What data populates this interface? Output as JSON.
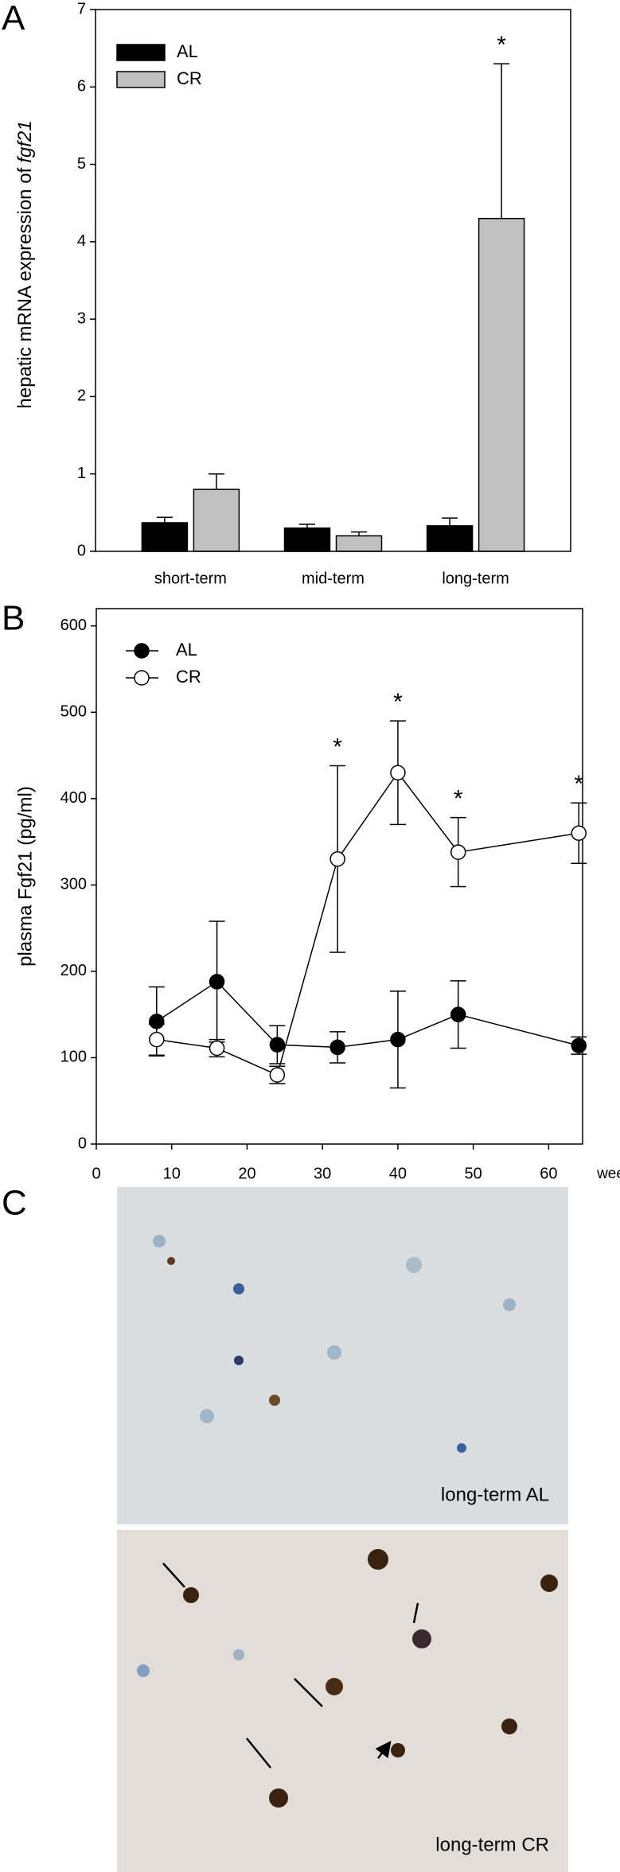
{
  "chart_data": [
    {
      "type": "bar",
      "panel": "A",
      "ylabel_parts": [
        "hepatic mRNA expression of",
        "fgf21"
      ],
      "categories": [
        "short-term",
        "mid-term",
        "long-term"
      ],
      "series": [
        {
          "name": "AL",
          "color": "#000000",
          "values": [
            0.37,
            0.3,
            0.33
          ],
          "errors": [
            0.07,
            0.05,
            0.1
          ]
        },
        {
          "name": "CR",
          "color": "#c0c0c0",
          "values": [
            0.8,
            0.2,
            4.3
          ],
          "errors": [
            0.2,
            0.05,
            2.0
          ],
          "markers": [
            null,
            null,
            "*"
          ]
        }
      ],
      "ylim": [
        0,
        7
      ],
      "yticks": [
        0,
        1,
        2,
        3,
        4,
        5,
        6,
        7
      ],
      "legend": "top-left"
    },
    {
      "type": "line",
      "panel": "B",
      "ylabel": "plasma Fgf21 (pg/ml)",
      "xlabel": "weeks",
      "x": [
        8,
        16,
        24,
        32,
        40,
        48,
        64
      ],
      "series": [
        {
          "name": "AL",
          "color": "#000000",
          "marker_fill": "#000000",
          "values": [
            142,
            188,
            115,
            112,
            121,
            150,
            114
          ],
          "errors": [
            40,
            70,
            22,
            18,
            56,
            39,
            10
          ]
        },
        {
          "name": "CR",
          "color": "#000000",
          "marker_fill": "#ffffff",
          "values": [
            121,
            111,
            80,
            330,
            430,
            338,
            360
          ],
          "errors": [
            18,
            10,
            10,
            108,
            60,
            40,
            35
          ],
          "markers": [
            null,
            null,
            null,
            "*",
            "*",
            "*",
            "*"
          ]
        }
      ],
      "xlim": [
        0,
        64.5
      ],
      "xticks": [
        0,
        10,
        20,
        30,
        40,
        50,
        60
      ],
      "ylim": [
        0,
        620
      ],
      "yticks": [
        0,
        100,
        200,
        300,
        400,
        500,
        600
      ],
      "legend": "top-left"
    }
  ],
  "figure_c": {
    "panel": "C",
    "captions": [
      "long-term AL",
      "long-term CR"
    ]
  }
}
